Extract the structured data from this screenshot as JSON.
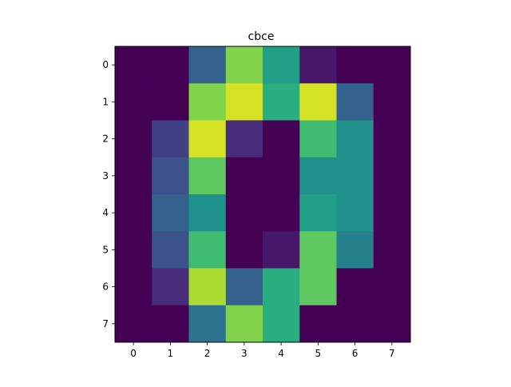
{
  "chart_data": {
    "type": "heatmap",
    "title": "cbce",
    "xlabel": "",
    "ylabel": "",
    "colormap": "viridis",
    "vmin": 0,
    "vmax": 16,
    "x_ticks": [
      "0",
      "1",
      "2",
      "3",
      "4",
      "5",
      "6",
      "7"
    ],
    "y_ticks": [
      "0",
      "1",
      "2",
      "3",
      "4",
      "5",
      "6",
      "7"
    ],
    "values": [
      [
        0,
        0,
        5,
        13,
        9,
        1,
        0,
        0
      ],
      [
        0,
        0,
        13,
        15,
        10,
        15,
        5,
        0
      ],
      [
        0,
        3,
        15,
        2,
        0,
        11,
        8,
        0
      ],
      [
        0,
        4,
        12,
        0,
        0,
        8,
        8,
        0
      ],
      [
        0,
        5,
        8,
        0,
        0,
        9,
        8,
        0
      ],
      [
        0,
        4,
        11,
        0,
        1,
        12,
        7,
        0
      ],
      [
        0,
        2,
        14,
        5,
        10,
        12,
        0,
        0
      ],
      [
        0,
        0,
        6,
        13,
        10,
        0,
        0,
        0
      ]
    ],
    "grid": false
  }
}
